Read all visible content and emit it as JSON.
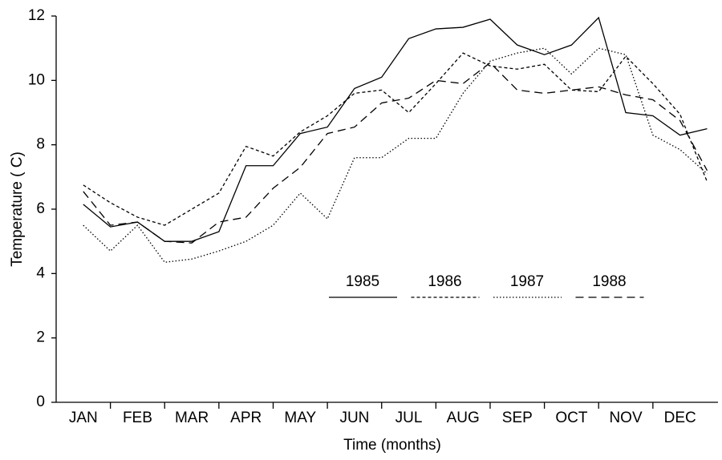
{
  "chart_data": {
    "type": "line",
    "xlabel": "Time (months)",
    "ylabel": "Temperature ( C)",
    "x": [
      1,
      1.5,
      2,
      2.5,
      3,
      3.5,
      4,
      4.5,
      5,
      5.5,
      6,
      6.5,
      7,
      7.5,
      8,
      8.5,
      9,
      9.5,
      10,
      10.5,
      11,
      11.5,
      12,
      12.5
    ],
    "xlim": [
      0.5,
      12.7
    ],
    "xticks": [
      {
        "value": 1,
        "label": "JAN"
      },
      {
        "value": 2,
        "label": "FEB"
      },
      {
        "value": 3,
        "label": "MAR"
      },
      {
        "value": 4,
        "label": "APR"
      },
      {
        "value": 5,
        "label": "MAY"
      },
      {
        "value": 6,
        "label": "JUN"
      },
      {
        "value": 7,
        "label": "JUL"
      },
      {
        "value": 8,
        "label": "AUG"
      },
      {
        "value": 9,
        "label": "SEP"
      },
      {
        "value": 10,
        "label": "OCT"
      },
      {
        "value": 11,
        "label": "NOV"
      },
      {
        "value": 12,
        "label": "DEC"
      }
    ],
    "ylim": [
      0,
      12
    ],
    "yticks": [
      0,
      2,
      4,
      6,
      8,
      10,
      12
    ],
    "grid": false,
    "legend": "center",
    "series": [
      {
        "name": "1985",
        "color": "#000000",
        "dash": "none",
        "values": [
          6.15,
          5.45,
          5.6,
          5.0,
          5.0,
          5.3,
          7.35,
          7.35,
          8.35,
          8.55,
          9.75,
          10.1,
          11.3,
          11.6,
          11.65,
          11.9,
          11.1,
          10.8,
          11.1,
          11.95,
          9.0,
          8.9,
          8.3,
          8.5
        ]
      },
      {
        "name": "1986",
        "color": "#000000",
        "dash": "4,3",
        "values": [
          6.75,
          6.2,
          5.75,
          5.5,
          6.0,
          6.5,
          7.95,
          7.65,
          8.4,
          8.9,
          9.6,
          9.7,
          9.0,
          9.9,
          10.85,
          10.45,
          10.35,
          10.5,
          9.7,
          9.65,
          10.75,
          9.9,
          8.95,
          6.85
        ]
      },
      {
        "name": "1987",
        "color": "#000000",
        "dash": "1.5,2.5",
        "values": [
          5.5,
          4.7,
          5.5,
          4.35,
          4.45,
          4.7,
          5.0,
          5.5,
          6.5,
          5.7,
          7.6,
          7.6,
          8.2,
          8.2,
          9.6,
          10.6,
          10.85,
          11.0,
          10.2,
          11.0,
          10.8,
          8.3,
          7.85,
          7.1
        ]
      },
      {
        "name": "1988",
        "color": "#000000",
        "dash": "10,6",
        "values": [
          6.55,
          5.5,
          5.6,
          5.0,
          4.95,
          5.6,
          5.75,
          6.65,
          7.3,
          8.35,
          8.55,
          9.3,
          9.45,
          10.0,
          9.9,
          10.55,
          9.7,
          9.6,
          9.7,
          9.8,
          9.55,
          9.4,
          8.75,
          7.2
        ]
      }
    ]
  }
}
